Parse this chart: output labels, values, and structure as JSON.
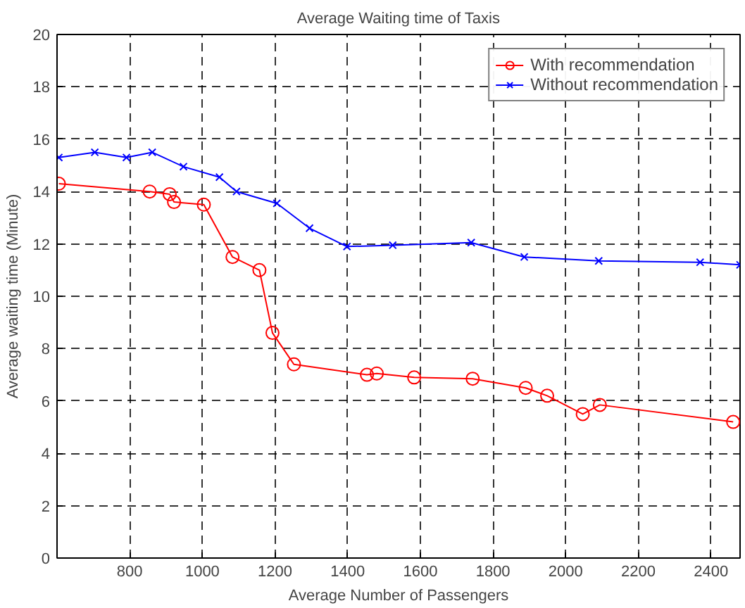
{
  "chart_data": {
    "type": "line",
    "title": "Average Waiting time of Taxis",
    "xlabel": "Average Number of Passengers",
    "ylabel": "Average waiting time (Minute)",
    "x": [
      605,
      855,
      910,
      922,
      1004,
      1083,
      1157,
      1193,
      1252,
      1453,
      1480,
      1583,
      1744,
      1890,
      1949,
      2047,
      2094,
      2461
    ],
    "series": [
      {
        "name": "With recommendation",
        "color": "#ff0000",
        "marker": "circle",
        "values": [
          14.3,
          14.0,
          13.9,
          13.6,
          13.5,
          11.5,
          11.0,
          8.6,
          7.4,
          7.0,
          7.05,
          6.9,
          6.85,
          6.5,
          6.2,
          5.5,
          5.85,
          5.2
        ]
      },
      {
        "name": "Without recommendation",
        "color": "#0000ff",
        "marker": "cross",
        "x": [
          605,
          704,
          791,
          862,
          948,
          1047,
          1094,
          1205,
          1295,
          1398,
          1524,
          1740,
          1886,
          2091,
          2370,
          2480
        ],
        "values": [
          15.3,
          15.5,
          15.3,
          15.5,
          14.95,
          14.55,
          14.0,
          13.55,
          12.6,
          11.9,
          11.95,
          12.05,
          11.5,
          11.35,
          11.3,
          11.2
        ]
      }
    ],
    "xlim": [
      600,
      2480
    ],
    "xticks": [
      800,
      1000,
      1200,
      1400,
      1600,
      1800,
      2000,
      2200,
      2400
    ],
    "ylim": [
      0,
      20
    ],
    "yticks": [
      0,
      2,
      4,
      6,
      8,
      10,
      12,
      14,
      16,
      18,
      20
    ],
    "grid": true,
    "legend": "top right",
    "line_style": "solid"
  }
}
